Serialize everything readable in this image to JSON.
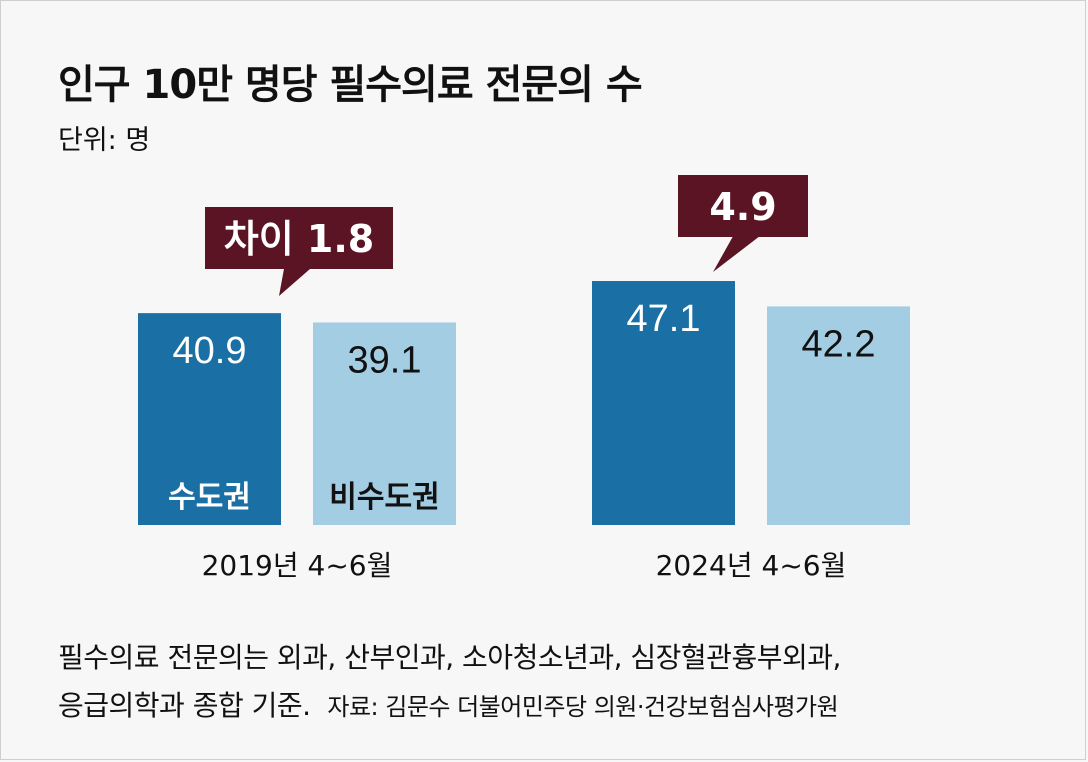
{
  "title": "인구 10만 명당 필수의료 전문의 수",
  "unit": "단위: 명",
  "colors": {
    "metro": "#1a6fa4",
    "non_metro": "#a3cde2",
    "callout": "#5a1424",
    "background": "#f7f7f7"
  },
  "chart_data": {
    "type": "bar",
    "title": "인구 10만 명당 필수의료 전문의 수",
    "ylabel": "단위: 명",
    "categories": [
      "2019년 4~6월",
      "2024년 4~6월"
    ],
    "series": [
      {
        "name": "수도권",
        "values": [
          40.9,
          47.1
        ]
      },
      {
        "name": "비수도권",
        "values": [
          39.1,
          42.2
        ]
      }
    ],
    "value_labels": [
      [
        "40.9",
        "39.1"
      ],
      [
        "47.1",
        "42.2"
      ]
    ],
    "callouts": [
      "차이 1.8",
      "4.9"
    ],
    "ylim": [
      0,
      50
    ]
  },
  "footnote": {
    "line1": "필수의료 전문의는 외과, 산부인과, 소아청소년과, 심장혈관흉부외과,",
    "line2": "응급의학과 종합 기준.",
    "source": "자료: 김문수 더불어민주당 의원·건강보험심사평가원"
  }
}
